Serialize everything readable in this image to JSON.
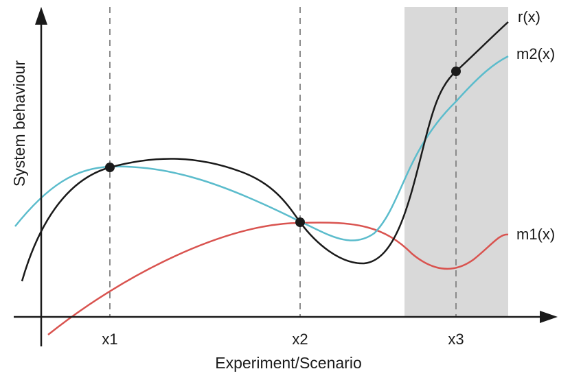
{
  "diagram": {
    "y_axis_label": "System behaviour",
    "x_axis_label": "Experiment/Scenario",
    "x_ticks": [
      "x1",
      "x2",
      "x3"
    ],
    "curves": [
      {
        "id": "r",
        "label": "r(x)",
        "color": "#1a1a1a"
      },
      {
        "id": "m2",
        "label": "m2(x)",
        "color": "#5bbccc"
      },
      {
        "id": "m1",
        "label": "m1(x)",
        "color": "#d9534f"
      }
    ],
    "highlight_region": {
      "color": "#d9d9d9",
      "around_tick": "x3"
    },
    "marked_points": [
      "x1",
      "x2",
      "x3"
    ]
  }
}
